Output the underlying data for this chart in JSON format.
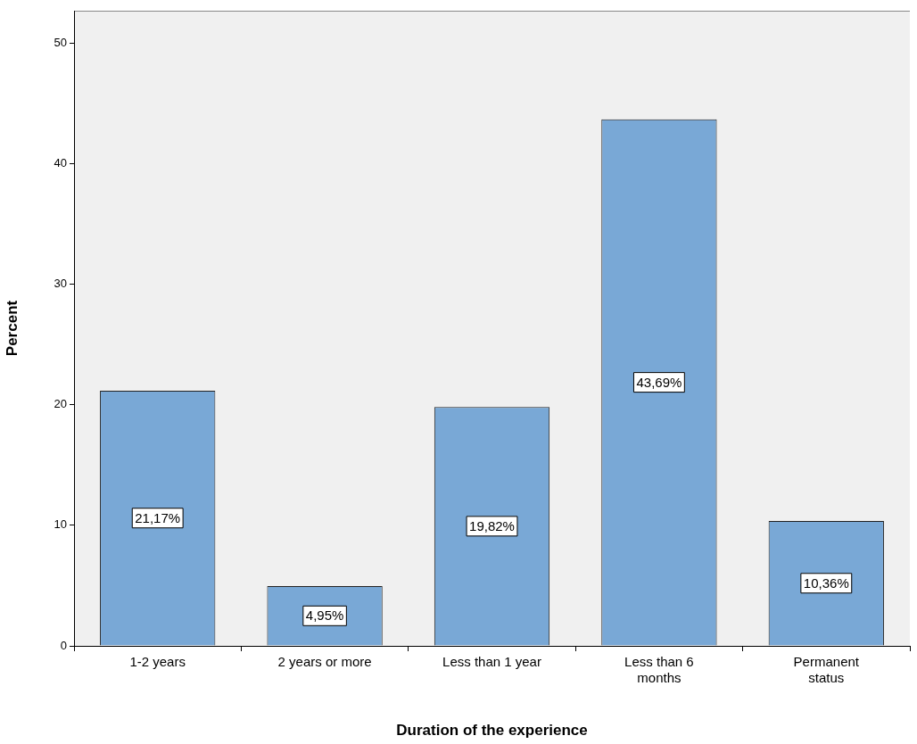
{
  "chart_data": {
    "type": "bar",
    "xlabel": "Duration of the experience",
    "ylabel": "Percent",
    "categories": [
      "1-2 years",
      "2 years or more",
      "Less than 1 year",
      "Less than 6\nmonths",
      "Permanent\nstatus"
    ],
    "values": [
      21.17,
      4.95,
      19.82,
      43.69,
      10.36
    ],
    "value_labels": [
      "21,17%",
      "4,95%",
      "19,82%",
      "43,69%",
      "10,36%"
    ],
    "color": "#79a8d6",
    "ylim": [
      0,
      52.7
    ],
    "yticks": [
      0,
      10,
      20,
      30,
      40,
      50
    ],
    "legend": false
  }
}
